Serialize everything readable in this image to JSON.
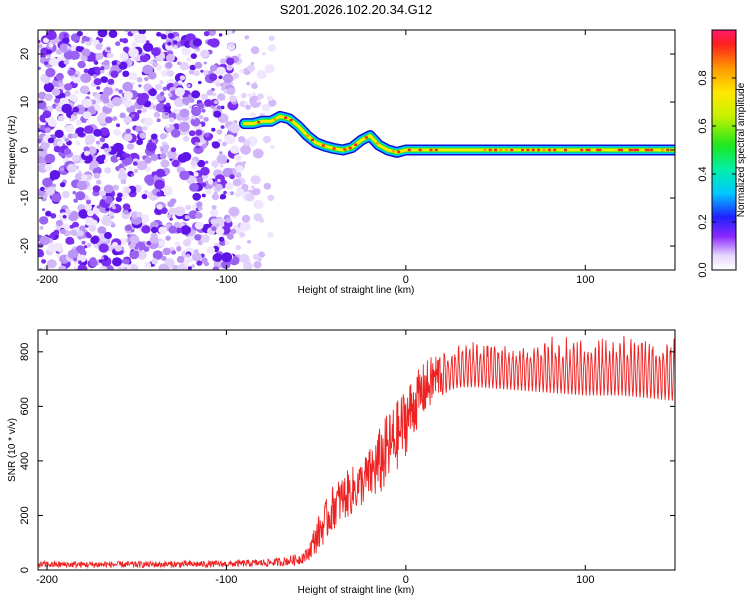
{
  "title": "S201.2026.102.20.34.G12",
  "chart_data": [
    {
      "type": "heatmap",
      "name": "spectrogram",
      "xlabel": "Height of straight line (km)",
      "ylabel": "Frequency (Hz)",
      "xlim": [
        -205,
        150
      ],
      "ylim": [
        -25,
        25
      ],
      "xticks": [
        -200,
        -100,
        0,
        100
      ],
      "yticks": [
        -20,
        -10,
        0,
        10,
        20
      ],
      "colorbar": {
        "label": "Normalized spectral amplitude",
        "range": [
          0,
          1
        ],
        "ticks": [
          "0.0",
          "0.2",
          "0.4",
          "0.6",
          "0.8"
        ]
      },
      "noise_region_x": [
        -205,
        -70
      ],
      "signal_track": {
        "x": [
          -90,
          -85,
          -80,
          -75,
          -70,
          -65,
          -60,
          -55,
          -50,
          -45,
          -40,
          -35,
          -30,
          -25,
          -20,
          -15,
          -10,
          -5,
          0,
          10,
          20,
          40,
          60,
          80,
          100,
          120,
          150
        ],
        "freq": [
          5.5,
          5.5,
          6,
          6,
          7,
          6.5,
          5,
          3,
          1.5,
          0.8,
          0.3,
          0,
          0.5,
          2,
          3,
          1,
          0,
          -0.5,
          0,
          0,
          0,
          0,
          0,
          0,
          0,
          0,
          0
        ]
      }
    },
    {
      "type": "line",
      "name": "snr",
      "xlabel": "Height of straight line (km)",
      "ylabel": "SNR (10 * v/v)",
      "xlim": [
        -205,
        150
      ],
      "ylim": [
        0,
        880
      ],
      "xticks": [
        -200,
        -100,
        0,
        100
      ],
      "yticks": [
        0,
        200,
        400,
        600,
        800
      ],
      "color": "#ee2222",
      "series": [
        {
          "name": "SNR envelope",
          "x": [
            -205,
            -150,
            -100,
            -80,
            -70,
            -60,
            -55,
            -50,
            -45,
            -40,
            -35,
            -30,
            -25,
            -20,
            -15,
            -10,
            -5,
            0,
            5,
            10,
            15,
            20,
            25,
            30,
            40,
            60,
            80,
            100,
            120,
            150
          ],
          "low": [
            8,
            8,
            10,
            12,
            14,
            18,
            30,
            60,
            100,
            150,
            180,
            200,
            230,
            250,
            260,
            300,
            360,
            420,
            500,
            560,
            600,
            640,
            660,
            670,
            670,
            660,
            650,
            640,
            640,
            620
          ],
          "high": [
            32,
            32,
            34,
            40,
            45,
            60,
            80,
            180,
            250,
            320,
            350,
            380,
            400,
            450,
            520,
            580,
            620,
            680,
            720,
            760,
            790,
            820,
            830,
            840,
            850,
            850,
            860,
            860,
            870,
            860
          ]
        }
      ]
    }
  ]
}
